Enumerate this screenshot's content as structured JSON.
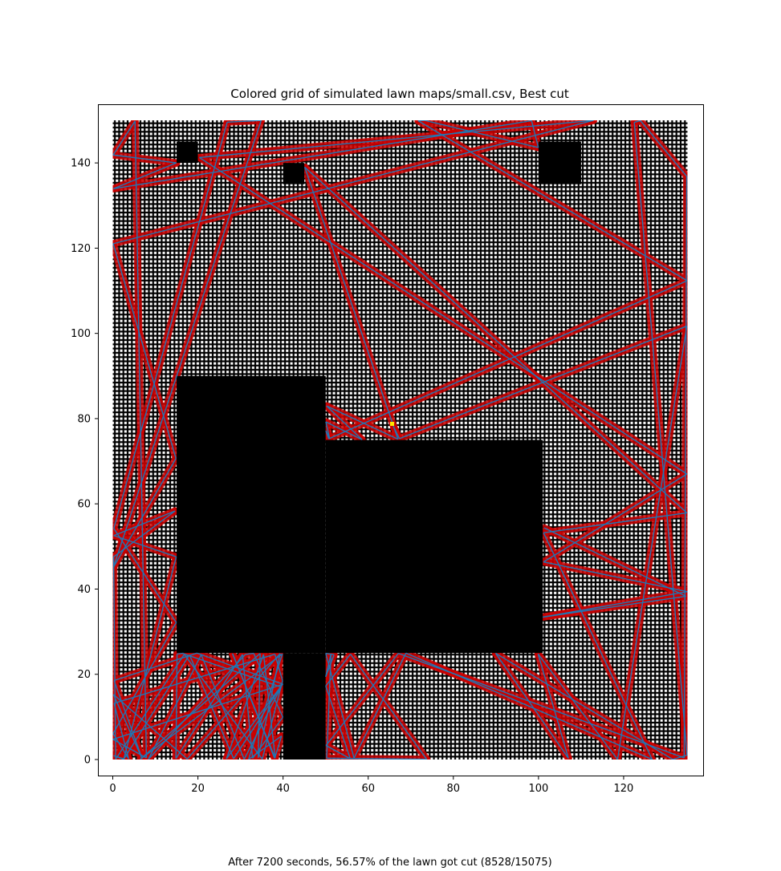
{
  "chart_data": {
    "type": "heatmap",
    "title": "Colored grid of simulated lawn maps/small.csv, Best cut",
    "caption": "After 7200 seconds, 56.57% of the lawn got cut (8528/15075)",
    "xlabel": "",
    "ylabel": "",
    "xlim": [
      -3,
      138
    ],
    "ylim": [
      -4,
      154
    ],
    "xticks": [
      0,
      20,
      40,
      60,
      80,
      100,
      120
    ],
    "yticks": [
      0,
      20,
      40,
      60,
      80,
      100,
      120,
      140
    ],
    "lawn_extent": {
      "x": [
        0,
        135
      ],
      "y": [
        0,
        150
      ]
    },
    "obstacles": [
      {
        "name": "obstacle-left-block",
        "x": [
          15,
          50
        ],
        "y": [
          25,
          90
        ]
      },
      {
        "name": "obstacle-center-block",
        "x": [
          50,
          101
        ],
        "y": [
          25,
          75
        ]
      },
      {
        "name": "obstacle-stem",
        "x": [
          40,
          50
        ],
        "y": [
          0,
          25
        ]
      },
      {
        "name": "obstacle-small-1",
        "x": [
          15,
          20
        ],
        "y": [
          140,
          145
        ]
      },
      {
        "name": "obstacle-small-2",
        "x": [
          40,
          45
        ],
        "y": [
          135,
          140
        ]
      },
      {
        "name": "obstacle-small-3",
        "x": [
          100,
          110
        ],
        "y": [
          135,
          145
        ]
      }
    ],
    "colors": {
      "uncut_cell": "#ffffff",
      "grid_line": "#000000",
      "obstacle": "#000000",
      "cut_cell": "#cc0000",
      "path": "#1f77b4",
      "start_marker": "#ffe600"
    },
    "stats": {
      "seconds": 7200,
      "percent_cut": 56.57,
      "cells_cut": 8528,
      "cells_total": 15075
    }
  }
}
